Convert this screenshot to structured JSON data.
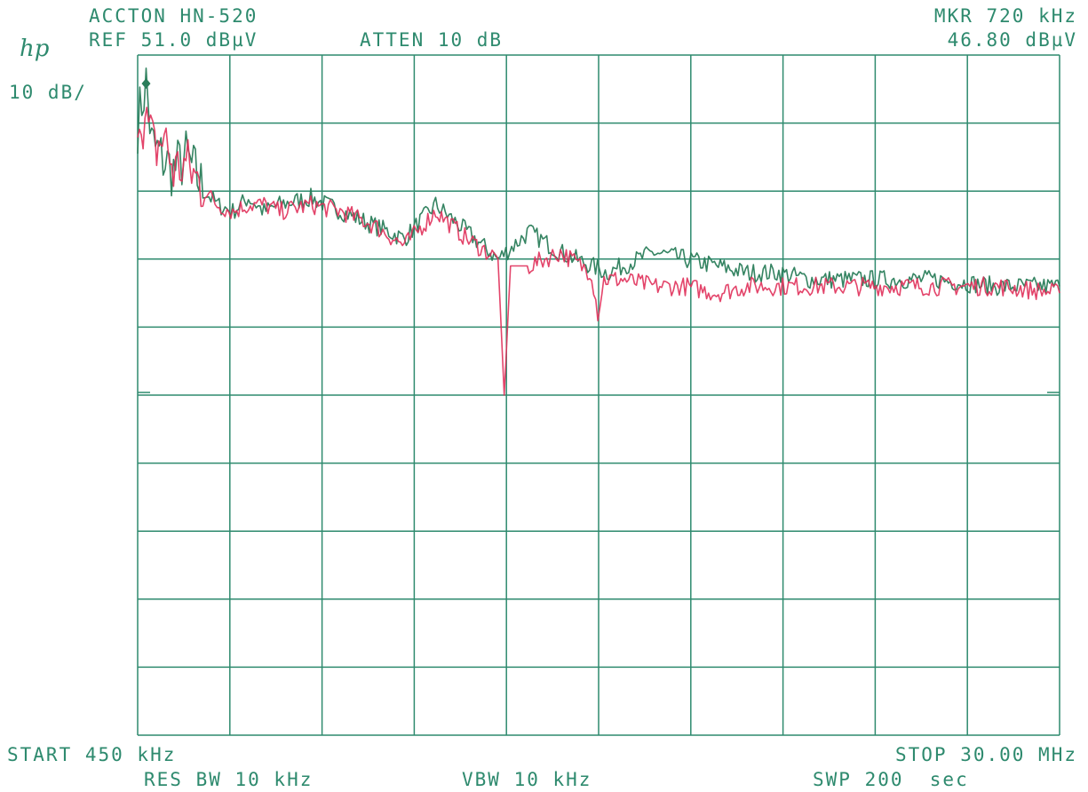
{
  "header": {
    "device": "ACCTON HN-520",
    "ref": "REF 51.0 dBµV",
    "atten": "ATTEN 10 dB",
    "scale": "10 dB/",
    "marker_freq": "MKR 720 kHz",
    "marker_level": "46.80 dBµV",
    "logo": "hp"
  },
  "footer": {
    "start": "START 450 kHz",
    "stop": "STOP 30.00 MHz",
    "res_bw": "RES BW 10 kHz",
    "vbw": "VBW 10 kHz",
    "sweep": "SWP 200  sec"
  },
  "colors": {
    "grid": "#2e8a6e",
    "trace_green": "#2a7d5a",
    "trace_red": "#e0305a",
    "text": "#2e8a6e"
  },
  "chart_data": {
    "type": "line",
    "x_unit": "MHz",
    "y_unit": "dBµV",
    "xlim": [
      0.45,
      30.0
    ],
    "ylim": [
      -49,
      51
    ],
    "y_ref": 51.0,
    "y_per_div": 10,
    "x_divisions": 10,
    "y_divisions": 10,
    "grid": true,
    "marker": {
      "x": 0.72,
      "y": 46.8
    },
    "series": [
      {
        "color": "trace_green",
        "x": [
          0.45,
          0.72,
          0.9,
          1.2,
          1.6,
          2.0,
          2.6,
          3.0,
          3.5,
          4.0,
          4.5,
          5.0,
          6.0,
          7.0,
          8.0,
          9.0,
          10.0,
          11.0,
          11.5,
          12.0,
          13.0,
          14.0,
          15.0,
          15.5,
          16.0,
          16.5,
          17.0,
          18.0,
          19.0,
          20.0,
          21.0,
          22.0,
          24.0,
          26.0,
          28.0,
          30.0
        ],
        "y": [
          41,
          47,
          38,
          36,
          34,
          36,
          31,
          29,
          28,
          30,
          28,
          29,
          30,
          28,
          26,
          24,
          29,
          25,
          23,
          21,
          25,
          22,
          20,
          19,
          20,
          21,
          22,
          21,
          20,
          19,
          19,
          18,
          18,
          18,
          17,
          17
        ]
      },
      {
        "color": "trace_red",
        "x": [
          0.45,
          0.8,
          1.0,
          1.3,
          1.6,
          2.0,
          2.6,
          3.0,
          3.5,
          4.0,
          4.5,
          5.0,
          6.0,
          7.0,
          8.0,
          9.0,
          10.0,
          11.0,
          12.0,
          12.2,
          12.4,
          13.0,
          14.0,
          15.0,
          15.2,
          15.4,
          16.0,
          17.0,
          18.0,
          19.0,
          20.0,
          22.0,
          24.0,
          26.0,
          28.0,
          30.0
        ],
        "y": [
          43,
          40,
          37,
          39,
          34,
          35,
          31,
          29,
          28,
          29,
          29,
          28,
          29,
          28,
          26,
          23,
          28,
          24,
          21,
          1,
          20,
          20,
          22,
          19,
          13,
          18,
          18,
          17,
          17,
          16,
          17,
          17,
          17,
          17,
          17,
          16
        ]
      }
    ]
  }
}
